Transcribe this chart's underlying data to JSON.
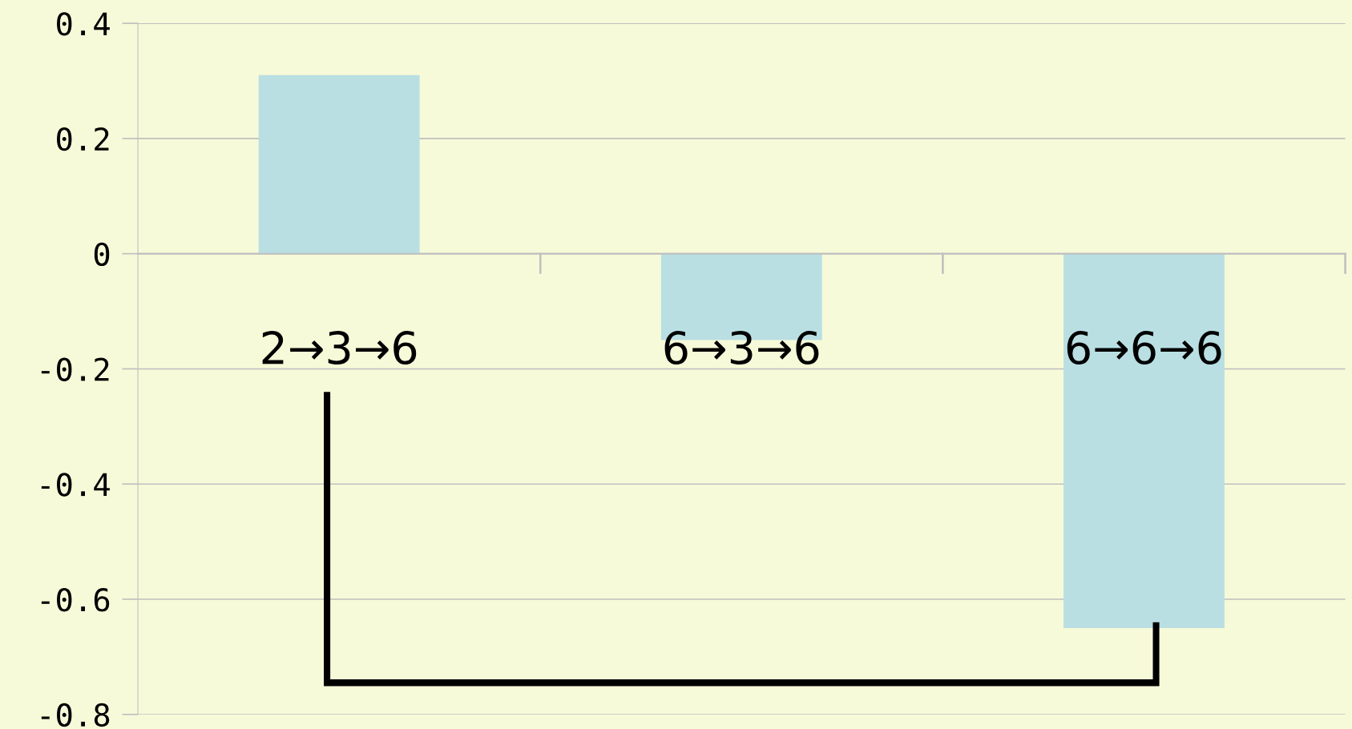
{
  "chart_data": {
    "type": "bar",
    "categories": [
      "2→3→6",
      "6→3→6",
      "6→6→6"
    ],
    "values": [
      0.31,
      -0.15,
      -0.65
    ],
    "color": "#b9dfe3",
    "ylim": [
      -0.8,
      0.4
    ],
    "yticks": [
      -0.8,
      -0.6,
      -0.4,
      -0.2,
      0,
      0.2,
      0.4
    ],
    "grid": "y",
    "legend": false
  }
}
